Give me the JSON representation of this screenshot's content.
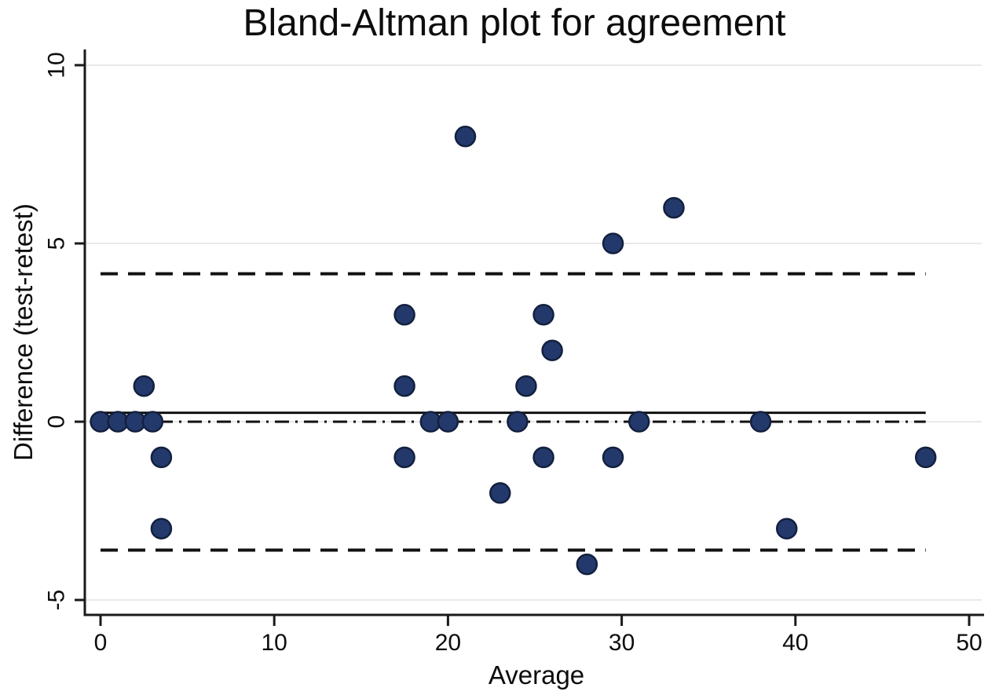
{
  "title": "Bland-Altman plot for agreement",
  "chart_data": {
    "type": "scatter",
    "title": "Bland-Altman plot for agreement",
    "xlabel": "Average",
    "ylabel": "Difference (test-retest)",
    "xlim": [
      0,
      50
    ],
    "ylim": [
      -5,
      10
    ],
    "x_ticks": [
      0,
      10,
      20,
      30,
      40,
      50
    ],
    "y_ticks": [
      10,
      5,
      0,
      -5
    ],
    "grid": "horizontal-light-gray",
    "legend": "none",
    "marker_color": "#24396b",
    "marker_edge_color": "#13203f",
    "line_color": "#111111",
    "grid_color": "#e9e9e9",
    "points": [
      [
        0,
        0
      ],
      [
        1,
        0
      ],
      [
        2,
        0
      ],
      [
        3,
        0
      ],
      [
        2.5,
        1
      ],
      [
        3.5,
        -1
      ],
      [
        3.5,
        -3
      ],
      [
        17.5,
        3
      ],
      [
        17.5,
        1
      ],
      [
        17.5,
        -1
      ],
      [
        19,
        0
      ],
      [
        20,
        0
      ],
      [
        21,
        8
      ],
      [
        23,
        -2
      ],
      [
        24,
        0
      ],
      [
        24.5,
        1
      ],
      [
        25.5,
        3
      ],
      [
        25.5,
        -1
      ],
      [
        26,
        2
      ],
      [
        28,
        -4
      ],
      [
        29.5,
        5
      ],
      [
        29.5,
        -1
      ],
      [
        31,
        0
      ],
      [
        33,
        6
      ],
      [
        38,
        0
      ],
      [
        39.5,
        -3
      ],
      [
        47.5,
        -1
      ]
    ],
    "reference_lines": [
      {
        "name": "mean-difference",
        "value": 0.25,
        "style": "solid",
        "x_span": [
          0,
          47.5
        ]
      },
      {
        "name": "zero-line",
        "value": 0,
        "style": "dash-dot",
        "x_span": [
          0,
          47.5
        ]
      },
      {
        "name": "upper-limit-of-agreement",
        "value": 4.15,
        "style": "dashed",
        "x_span": [
          0,
          47.5
        ]
      },
      {
        "name": "lower-limit-of-agreement",
        "value": -3.6,
        "style": "dashed",
        "x_span": [
          0,
          47.5
        ]
      }
    ]
  }
}
